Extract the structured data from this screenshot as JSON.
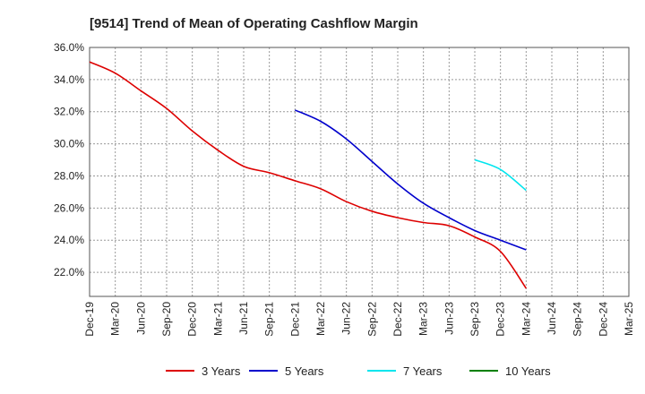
{
  "chart_data": {
    "type": "line",
    "title": "[9514]  Trend of Mean of Operating Cashflow Margin",
    "xlabel": "",
    "ylabel": "",
    "ylim": [
      20.5,
      36.0
    ],
    "yticks": [
      22.0,
      24.0,
      26.0,
      28.0,
      30.0,
      32.0,
      34.0,
      36.0
    ],
    "ytick_labels": [
      "22.0%",
      "24.0%",
      "26.0%",
      "28.0%",
      "30.0%",
      "32.0%",
      "34.0%",
      "36.0%"
    ],
    "categories": [
      "Dec-19",
      "Mar-20",
      "Jun-20",
      "Sep-20",
      "Dec-20",
      "Mar-21",
      "Jun-21",
      "Sep-21",
      "Dec-21",
      "Mar-22",
      "Jun-22",
      "Sep-22",
      "Dec-22",
      "Mar-23",
      "Jun-23",
      "Sep-23",
      "Dec-23",
      "Mar-24",
      "Jun-24",
      "Sep-24",
      "Dec-24",
      "Mar-25"
    ],
    "grid": true,
    "legend_position": "bottom",
    "series": [
      {
        "name": "3 Years",
        "color": "#dd0000",
        "values": [
          35.1,
          34.4,
          33.3,
          32.2,
          30.8,
          29.6,
          28.6,
          28.2,
          27.7,
          27.2,
          26.4,
          25.8,
          25.4,
          25.1,
          24.9,
          24.2,
          23.3,
          21.0,
          null,
          null,
          null,
          null
        ]
      },
      {
        "name": "5 Years",
        "color": "#0000cc",
        "values": [
          null,
          null,
          null,
          null,
          null,
          null,
          null,
          null,
          32.1,
          31.4,
          30.3,
          28.9,
          27.5,
          26.3,
          25.4,
          24.6,
          24.0,
          23.4,
          null,
          null,
          null,
          null
        ]
      },
      {
        "name": "7 Years",
        "color": "#00e5ee",
        "values": [
          null,
          null,
          null,
          null,
          null,
          null,
          null,
          null,
          null,
          null,
          null,
          null,
          null,
          null,
          null,
          29.0,
          28.4,
          27.1,
          null,
          null,
          null,
          null
        ]
      },
      {
        "name": "10 Years",
        "color": "#008000",
        "values": [
          null,
          null,
          null,
          null,
          null,
          null,
          null,
          null,
          null,
          null,
          null,
          null,
          null,
          null,
          null,
          null,
          null,
          null,
          null,
          null,
          null,
          null
        ]
      }
    ]
  }
}
